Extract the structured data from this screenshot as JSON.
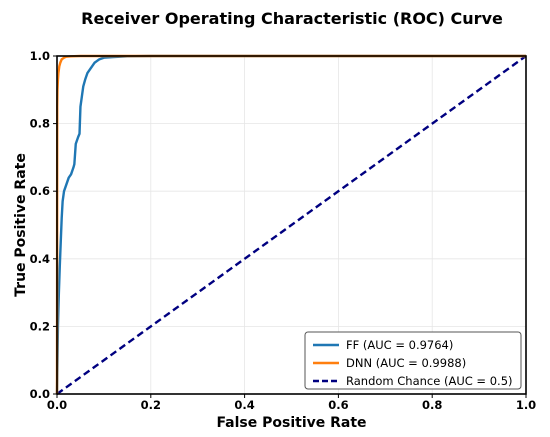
{
  "chart_data": {
    "type": "line",
    "title": "Receiver Operating Characteristic (ROC) Curve",
    "xlabel": "False Positive Rate",
    "ylabel": "True Positive Rate",
    "xlim": [
      0.0,
      1.0
    ],
    "ylim": [
      0.0,
      1.0
    ],
    "xticks": [
      "0.0",
      "0.2",
      "0.4",
      "0.6",
      "0.8",
      "1.0"
    ],
    "yticks": [
      "0.0",
      "0.2",
      "0.4",
      "0.6",
      "0.8",
      "1.0"
    ],
    "grid": true,
    "legend_position": "bottom-right",
    "series": [
      {
        "name": "FF (AUC = 0.9764)",
        "color": "#1f77b4",
        "dash": "solid",
        "x": [
          0.0,
          0.002,
          0.004,
          0.006,
          0.008,
          0.01,
          0.012,
          0.015,
          0.02,
          0.025,
          0.03,
          0.035,
          0.037,
          0.04,
          0.045,
          0.048,
          0.05,
          0.053,
          0.056,
          0.06,
          0.065,
          0.07,
          0.075,
          0.08,
          0.085,
          0.09,
          0.1,
          0.12,
          0.15,
          0.2,
          0.3,
          0.5,
          1.0
        ],
        "y": [
          0.0,
          0.2,
          0.3,
          0.38,
          0.45,
          0.52,
          0.57,
          0.6,
          0.62,
          0.64,
          0.65,
          0.67,
          0.68,
          0.74,
          0.76,
          0.77,
          0.85,
          0.88,
          0.91,
          0.93,
          0.95,
          0.96,
          0.97,
          0.98,
          0.985,
          0.99,
          0.995,
          0.997,
          0.999,
          1.0,
          1.0,
          1.0,
          1.0
        ]
      },
      {
        "name": "DNN (AUC = 0.9988)",
        "color": "#ff7f0e",
        "dash": "solid",
        "x": [
          0.0,
          0.0005,
          0.001,
          0.002,
          0.003,
          0.004,
          0.005,
          0.007,
          0.01,
          0.015,
          0.02,
          0.03,
          0.05,
          0.1,
          0.2,
          0.5,
          1.0
        ],
        "y": [
          0.0,
          0.85,
          0.9,
          0.93,
          0.95,
          0.96,
          0.97,
          0.98,
          0.99,
          0.995,
          0.998,
          0.999,
          1.0,
          1.0,
          1.0,
          1.0,
          1.0
        ]
      },
      {
        "name": "Random Chance (AUC = 0.5)",
        "color": "#000080",
        "dash": "dashed",
        "x": [
          0.0,
          1.0
        ],
        "y": [
          0.0,
          1.0
        ]
      }
    ]
  }
}
